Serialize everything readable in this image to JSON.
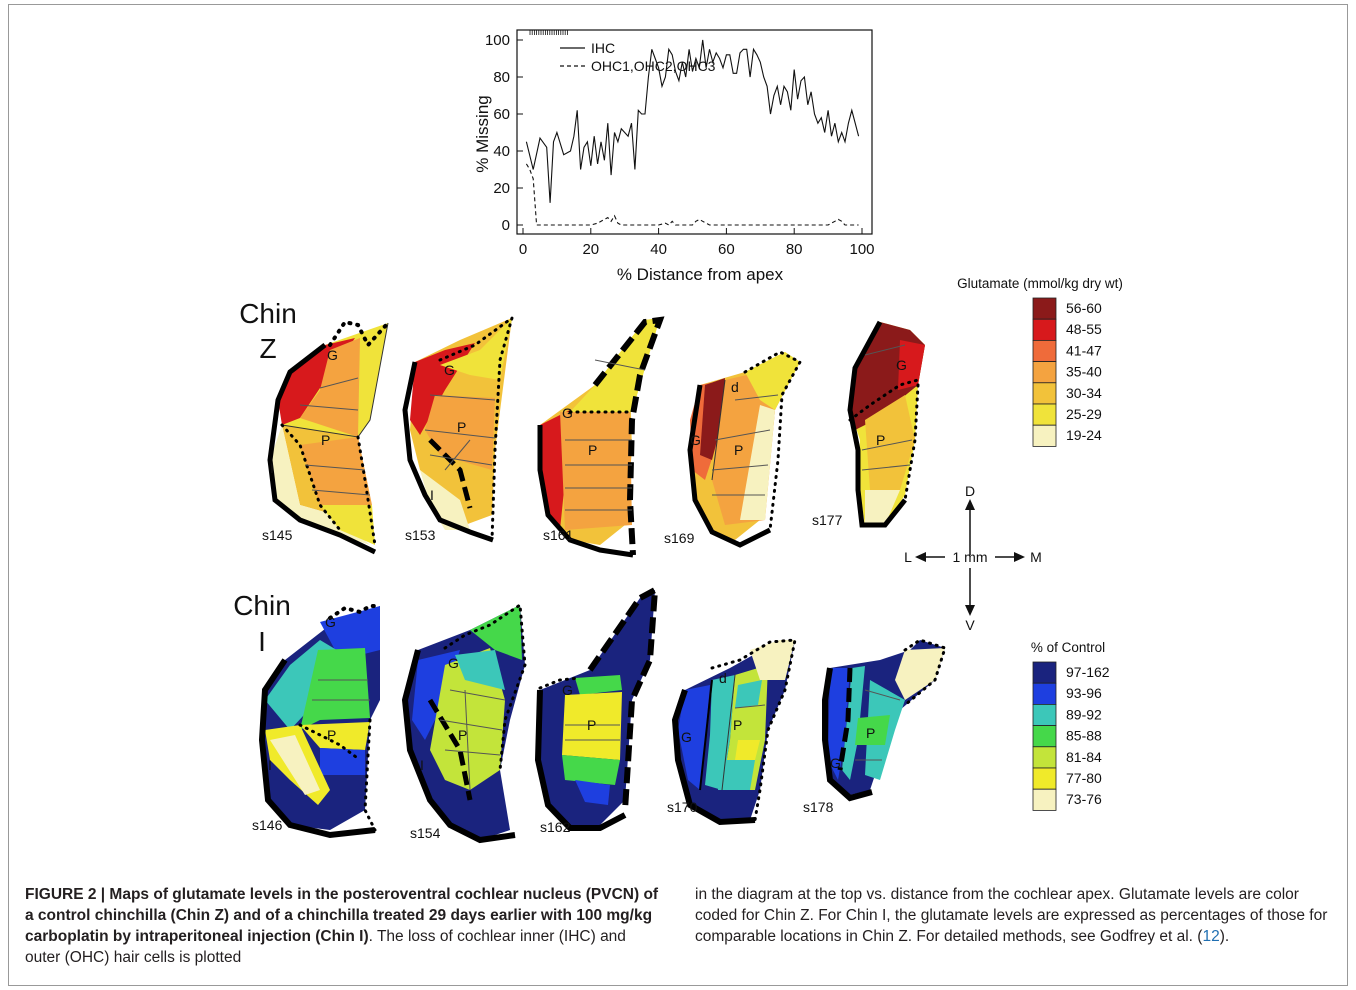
{
  "chart_data": {
    "type": "line",
    "xlabel": "% Distance from apex",
    "ylabel": "% Missing",
    "xlim": [
      0,
      100
    ],
    "ylim": [
      0,
      100
    ],
    "xticks": [
      "0",
      "20",
      "40",
      "60",
      "80",
      "100"
    ],
    "yticks": [
      "0",
      "20",
      "40",
      "60",
      "80",
      "100"
    ],
    "grid": false,
    "legend_position": "top-left",
    "series": [
      {
        "name": "IHC",
        "style": "solid",
        "x": [
          1,
          3,
          5,
          7,
          8,
          9,
          10,
          12,
          14,
          15,
          16,
          17,
          18,
          19,
          20,
          21,
          22,
          23,
          24,
          25,
          26,
          27,
          28,
          29,
          30,
          31,
          32,
          33,
          34,
          35,
          36,
          37,
          38,
          39,
          40,
          41,
          42,
          43,
          44,
          45,
          46,
          47,
          48,
          49,
          50,
          51,
          52,
          53,
          54,
          55,
          56,
          57,
          58,
          59,
          60,
          61,
          62,
          63,
          64,
          65,
          66,
          67,
          68,
          69,
          70,
          71,
          72,
          73,
          74,
          75,
          76,
          77,
          78,
          79,
          80,
          81,
          82,
          83,
          84,
          85,
          86,
          87,
          88,
          89,
          90,
          91,
          92,
          93,
          94,
          95,
          96,
          97,
          98,
          99
        ],
        "values": [
          45,
          30,
          47,
          42,
          12,
          45,
          50,
          38,
          40,
          48,
          62,
          30,
          42,
          45,
          32,
          48,
          33,
          45,
          35,
          55,
          27,
          50,
          45,
          52,
          50,
          48,
          55,
          30,
          62,
          60,
          60,
          80,
          95,
          90,
          85,
          75,
          80,
          95,
          92,
          83,
          78,
          88,
          80,
          95,
          83,
          90,
          85,
          100,
          85,
          95,
          88,
          93,
          90,
          85,
          92,
          92,
          82,
          82,
          93,
          95,
          95,
          80,
          95,
          92,
          88,
          80,
          75,
          60,
          70,
          75,
          65,
          75,
          72,
          62,
          84,
          68,
          78,
          80,
          65,
          72,
          60,
          55,
          58,
          50,
          62,
          48,
          55,
          45,
          50,
          45,
          55,
          62,
          55,
          48
        ]
      },
      {
        "name": "OHC1,OHC2,OHC3",
        "style": "dashed",
        "x": [
          1,
          2,
          3,
          4,
          5,
          10,
          15,
          20,
          22,
          24,
          25,
          26,
          27,
          28,
          29,
          30,
          35,
          40,
          42,
          43,
          44,
          45,
          50,
          51,
          52,
          53,
          55,
          60,
          65,
          70,
          75,
          80,
          85,
          90,
          92,
          93,
          94,
          95,
          97,
          99
        ],
        "values": [
          33,
          30,
          25,
          0,
          0,
          0,
          0,
          0,
          1,
          3,
          4,
          2,
          5,
          1,
          0,
          0,
          0,
          0,
          1,
          0,
          2,
          0,
          0,
          2,
          3,
          2,
          0,
          0,
          0,
          0,
          0,
          0,
          0,
          0,
          2,
          3,
          2,
          0,
          0,
          0
        ]
      }
    ]
  },
  "maps": {
    "chin_z": {
      "label_line1": "Chin",
      "label_line2": "Z",
      "sections": [
        "s145",
        "s153",
        "s161",
        "s169",
        "s177"
      ]
    },
    "chin_i": {
      "label_line1": "Chin",
      "label_line2": "I",
      "sections": [
        "s146",
        "s154",
        "s162",
        "s170",
        "s178"
      ]
    },
    "region_labels": {
      "p": "P",
      "g": "G",
      "i": "I",
      "d": "d"
    }
  },
  "glutamate_legend": {
    "title": "Glutamate (mmol/kg dry wt)",
    "entries": [
      {
        "label": "56-60",
        "color": "#8b1a1a"
      },
      {
        "label": "48-55",
        "color": "#d7191c"
      },
      {
        "label": "41-47",
        "color": "#ef6b3a"
      },
      {
        "label": "35-40",
        "color": "#f4a340"
      },
      {
        "label": "30-34",
        "color": "#f2c23a"
      },
      {
        "label": "25-29",
        "color": "#f0e33a"
      },
      {
        "label": "19-24",
        "color": "#f7f2c0"
      }
    ]
  },
  "control_legend": {
    "title": "% of Control",
    "entries": [
      {
        "label": "97-162",
        "color": "#1a237e"
      },
      {
        "label": "93-96",
        "color": "#1e3fe0"
      },
      {
        "label": "89-92",
        "color": "#3cc7b9"
      },
      {
        "label": "85-88",
        "color": "#45d84a"
      },
      {
        "label": "81-84",
        "color": "#c3e43a"
      },
      {
        "label": "77-80",
        "color": "#f0ea2a"
      },
      {
        "label": "73-76",
        "color": "#f7f2c0"
      }
    ]
  },
  "orientation": {
    "dorsal": "D",
    "ventral": "V",
    "lateral": "L",
    "medial": "M",
    "scale": "1 mm"
  },
  "caption": {
    "bold": "FIGURE 2 | Maps of glutamate levels in the posteroventral cochlear nucleus (PVCN) of a control chinchilla (Chin Z) and of a chinchilla treated 29 days earlier with 100 mg/kg carboplatin by intraperitoneal injection (Chin I)",
    "text_left": ". The loss of cochlear inner (IHC) and outer (OHC) hair cells is plotted",
    "text_right_1": "in the diagram at the top vs. distance from the cochlear apex. Glutamate levels are color coded for Chin Z. For Chin I, the glutamate levels are expressed as percentages of those for comparable locations in Chin Z. For detailed methods, see Godfrey et al. (",
    "ref": "12",
    "text_right_2": ")."
  }
}
